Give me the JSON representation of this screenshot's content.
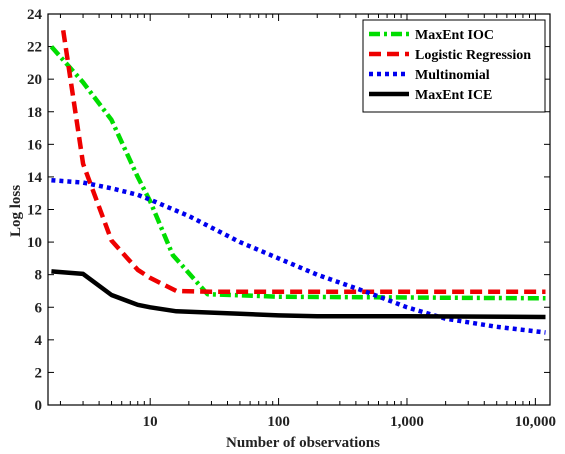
{
  "chart_data": {
    "type": "line",
    "xlabel": "Number of observations",
    "ylabel": "Log loss",
    "x_scale": "log",
    "xlim": [
      1.6,
      13000
    ],
    "ylim": [
      0,
      24
    ],
    "x_ticks": [
      {
        "value": 10,
        "label": "10"
      },
      {
        "value": 100,
        "label": "100"
      },
      {
        "value": 1000,
        "label": "1,000"
      },
      {
        "value": 10000,
        "label": "10,000"
      }
    ],
    "y_ticks": [
      0,
      2,
      4,
      6,
      8,
      10,
      12,
      14,
      16,
      18,
      20,
      22,
      24
    ],
    "grid": false,
    "legend_position": "top-right",
    "series": [
      {
        "name": "MaxEnt IOC",
        "color": "#00dd00",
        "style": "dashdot",
        "points": [
          [
            1.7,
            22.0
          ],
          [
            3,
            19.8
          ],
          [
            5,
            17.5
          ],
          [
            8,
            14.0
          ],
          [
            10,
            12.5
          ],
          [
            15,
            9.2
          ],
          [
            28,
            6.8
          ],
          [
            100,
            6.65
          ],
          [
            1000,
            6.6
          ],
          [
            12000,
            6.55
          ]
        ]
      },
      {
        "name": "Logistic Regression",
        "color": "#ee0000",
        "style": "dashed",
        "points": [
          [
            2.1,
            23.0
          ],
          [
            3,
            14.8
          ],
          [
            5,
            10.1
          ],
          [
            8,
            8.3
          ],
          [
            10,
            7.8
          ],
          [
            16,
            7.0
          ],
          [
            30,
            6.95
          ],
          [
            100,
            6.95
          ],
          [
            1000,
            6.95
          ],
          [
            12000,
            6.95
          ]
        ]
      },
      {
        "name": "Multinomial",
        "color": "#0000ee",
        "style": "dotted",
        "points": [
          [
            1.7,
            13.8
          ],
          [
            3,
            13.65
          ],
          [
            5,
            13.3
          ],
          [
            8,
            12.9
          ],
          [
            10,
            12.6
          ],
          [
            20,
            11.6
          ],
          [
            50,
            10.0
          ],
          [
            100,
            9.0
          ],
          [
            200,
            8.0
          ],
          [
            500,
            6.9
          ],
          [
            1000,
            6.0
          ],
          [
            2000,
            5.3
          ],
          [
            5000,
            4.8
          ],
          [
            12000,
            4.45
          ]
        ]
      },
      {
        "name": "MaxEnt ICE",
        "color": "#000000",
        "style": "solid",
        "points": [
          [
            1.7,
            8.2
          ],
          [
            3,
            8.05
          ],
          [
            5,
            6.75
          ],
          [
            8,
            6.15
          ],
          [
            10,
            6.0
          ],
          [
            16,
            5.75
          ],
          [
            50,
            5.6
          ],
          [
            100,
            5.5
          ],
          [
            200,
            5.45
          ],
          [
            1000,
            5.45
          ],
          [
            12000,
            5.4
          ]
        ]
      }
    ]
  }
}
